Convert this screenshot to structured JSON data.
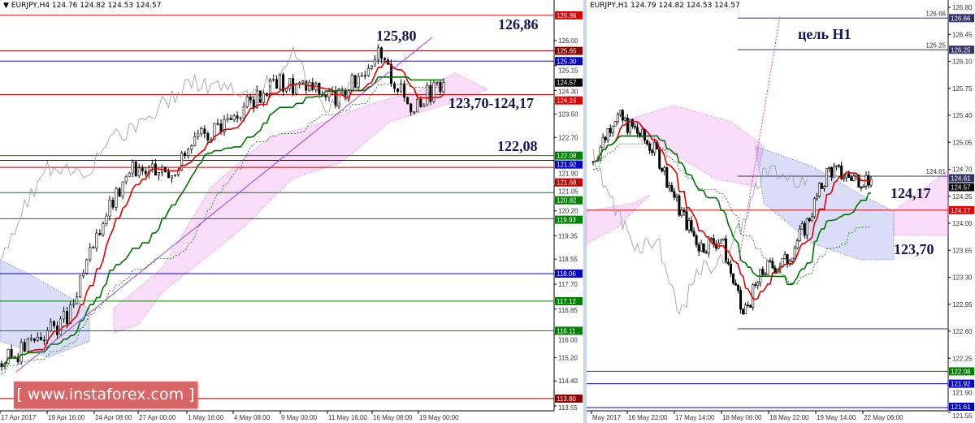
{
  "chart_data": [
    {
      "type": "candlestick",
      "header": "EURJPY,H4  124.76 124.82 124.53 124.57",
      "ylim": [
        113.55,
        126.86
      ],
      "y_ticks": [
        "126.00",
        "125.15",
        "124.30",
        "123.50",
        "122.70",
        "121.90",
        "121.05",
        "120.20",
        "119.35",
        "118.55",
        "117.70",
        "116.85",
        "116.00",
        "115.20",
        "114.40",
        "113.55"
      ],
      "x_ticks": [
        "17 Apr 2017",
        "19 Apr 16:00",
        "24 Apr 08:00",
        "27 Apr 00:00",
        "1 May 16:00",
        "4 May 08:00",
        "9 May 00:00",
        "11 May 16:00",
        "16 May 08:00",
        "19 May 00:00"
      ],
      "approx_close_path": [
        115.0,
        115.8,
        116.6,
        120.0,
        121.8,
        121.6,
        122.8,
        123.6,
        124.6,
        124.4,
        124.0,
        125.6,
        123.8,
        124.57
      ],
      "current_price": "124.57",
      "levels": [
        {
          "label": "126.86",
          "color": "#e00000"
        },
        {
          "label": "125.65",
          "color": "#8b0000"
        },
        {
          "label": "125.30",
          "color": "#0000cc"
        },
        {
          "label": "124.16",
          "color": "#e00000"
        },
        {
          "label": "122.08",
          "color": "#008000"
        },
        {
          "label": "121.92",
          "color": "#0000cc"
        },
        {
          "label": "121.68",
          "color": "#c00000"
        },
        {
          "label": "120.82",
          "color": "#008000"
        },
        {
          "label": "119.93",
          "color": "#008000"
        },
        {
          "label": "118.06",
          "color": "#0000cc"
        },
        {
          "label": "117.12",
          "color": "#008000"
        },
        {
          "label": "116.11",
          "color": "#008000"
        },
        {
          "label": "113.80",
          "color": "#8b0000"
        }
      ],
      "annotations": [
        "125,80",
        "126,86",
        "123,70-124,17",
        "122,08"
      ]
    },
    {
      "type": "candlestick",
      "header": "EURJPY,H1  124.79 124.82 124.53 124.57",
      "ylim": [
        121.55,
        126.8
      ],
      "y_ticks": [
        "126.80",
        "126.45",
        "126.10",
        "125.75",
        "125.40",
        "125.05",
        "124.70",
        "124.35",
        "124.00",
        "123.65",
        "123.30",
        "122.95",
        "122.60",
        "122.25",
        "121.90",
        "121.55"
      ],
      "x_ticks": [
        "May 2017",
        "16 May 22:00",
        "17 May 14:00",
        "18 May 06:00",
        "18 May 22:00",
        "19 May 14:00",
        "22 May 06:00"
      ],
      "approx_close_path": [
        124.8,
        125.4,
        125.2,
        124.9,
        124.2,
        123.7,
        123.8,
        122.8,
        123.4,
        123.5,
        124.0,
        124.7,
        124.6,
        124.57
      ],
      "current_price": "124.57",
      "levels": [
        {
          "label": "126.66",
          "color": "#333366",
          "inline": true
        },
        {
          "label": "126.25",
          "color": "#333366",
          "inline": true
        },
        {
          "label": "124.61",
          "color": "#333366",
          "inline": true
        },
        {
          "label": "124.17",
          "color": "#e00000"
        },
        {
          "label": "122.08",
          "color": "#008000"
        },
        {
          "label": "121.92",
          "color": "#0000cc"
        },
        {
          "label": "121.61",
          "color": "#0000cc"
        }
      ],
      "annotations": [
        "цель H1",
        "124,17",
        "123,70"
      ]
    }
  ],
  "watermark": "[ www.instaforex.com ]",
  "colors": {
    "tenkan": "#e00000",
    "kijun": "#007000",
    "cloud_bull": "#e040e0",
    "cloud_bear": "#3040d0",
    "current": "#000000"
  }
}
